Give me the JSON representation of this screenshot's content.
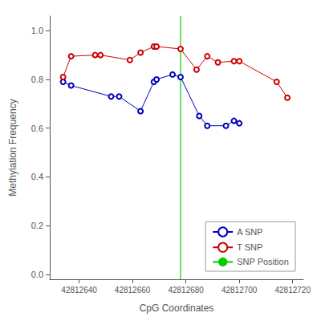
{
  "chart_data": {
    "type": "line",
    "xlabel": "CpG Coordinates",
    "ylabel": "Methylation Frequency",
    "xlim": [
      42812629,
      42812724
    ],
    "ylim": [
      -0.02,
      1.06
    ],
    "xticks": [
      42812640,
      42812660,
      42812680,
      42812700,
      42812720
    ],
    "yticks": [
      {
        "value": 0.0,
        "label": "0.0"
      },
      0.2,
      0.4,
      0.6,
      0.8,
      {
        "value": 1.0,
        "label": "1.0"
      }
    ],
    "grid": false,
    "legend": "lower right",
    "series": [
      {
        "name": "A SNP",
        "type": "line",
        "color": "#0000bb",
        "marker": "circle",
        "x": [
          42812634,
          42812637,
          42812652,
          42812655,
          42812663,
          42812668,
          42812669,
          42812675,
          42812678,
          42812685,
          42812688,
          42812695,
          42812698,
          42812700
        ],
        "values": [
          0.79,
          0.775,
          0.73,
          0.73,
          0.67,
          0.79,
          0.8,
          0.82,
          0.81,
          0.65,
          0.61,
          0.61,
          0.63,
          0.62
        ]
      },
      {
        "name": "T SNP",
        "type": "line",
        "color": "#cc0000",
        "marker": "circle",
        "x": [
          42812634,
          42812637,
          42812646,
          42812648,
          42812659,
          42812663,
          42812668,
          42812669,
          42812678,
          42812684,
          42812688,
          42812692,
          42812698,
          42812700,
          42812714,
          42812718
        ],
        "values": [
          0.81,
          0.895,
          0.9,
          0.9,
          0.88,
          0.91,
          0.935,
          0.935,
          0.925,
          0.84,
          0.895,
          0.87,
          0.875,
          0.875,
          0.79,
          0.725
        ]
      },
      {
        "name": "SNP Position",
        "type": "vline",
        "color": "#00cc00",
        "x": 42812678
      }
    ]
  }
}
